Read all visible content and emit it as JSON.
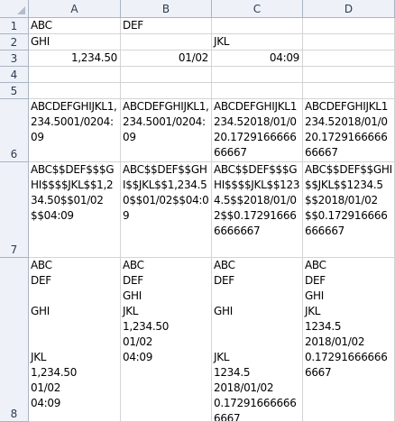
{
  "columns": [
    "A",
    "B",
    "C",
    "D"
  ],
  "rows": [
    "1",
    "2",
    "3",
    "4",
    "5",
    "6",
    "7",
    "8"
  ],
  "cells": {
    "A1": "ABC",
    "B1": "DEF",
    "A2": "GHI",
    "C2": "JKL",
    "A3": "1,234.50",
    "B3": "01/02",
    "C3": "04:09",
    "A6": "ABCDEFGHIJKL1,234.5001/0204:09",
    "B6": "ABCDEFGHIJKL1,234.5001/0204:09",
    "C6": "ABCDEFGHIJKL1234.52018/01/020.172916666666667",
    "D6": "ABCDEFGHIJKL1234.52018/01/020.172916666666667",
    "A7": "ABC$$DEF$$$GHI$$$$JKL$$1,234.50$$01/02$$04:09",
    "B7": "ABC$$DEF$$GHI$$JKL$$1,234.50$$01/02$$04:09",
    "C7": "ABC$$DEF$$$GHI$$$$JKL$$1234.5$$2018/01/02$$0.172916666666667",
    "D7": "ABC$$DEF$$GHI$$JKL$$1234.5$$2018/01/02$$0.172916666666667",
    "A8": "ABC\nDEF\n\nGHI\n\n\nJKL\n1,234.50\n01/02\n04:09",
    "B8": "ABC\nDEF\nGHI\nJKL\n1,234.50\n01/02\n04:09",
    "C8": "ABC\nDEF\n\nGHI\n\n\nJKL\n1234.5\n2018/01/02\n0.172916666666667",
    "D8": "ABC\nDEF\nGHI\nJKL\n1234.5\n2018/01/02\n0.172916666666667"
  }
}
